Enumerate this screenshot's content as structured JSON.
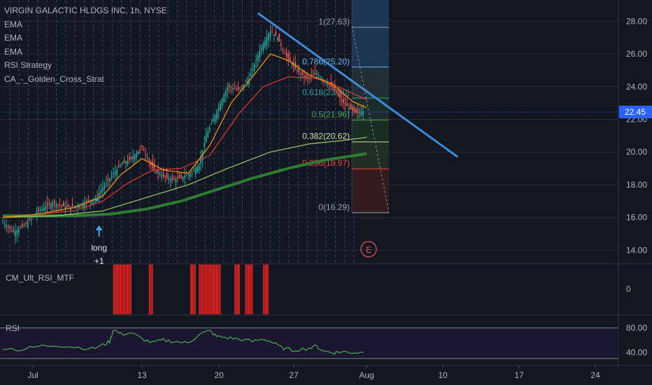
{
  "chart_data": {
    "type": "candlestick",
    "title": "VIRGIN GALACTIC HLDGS INC, 1h, NYSE",
    "overlays": [
      "EMA",
      "EMA",
      "EMA",
      "RSI Strategy",
      "CA_-_Golden_Cross_Strat"
    ],
    "price_axis": {
      "ticks": [
        14,
        16,
        18,
        20,
        22,
        24,
        26,
        28
      ],
      "labels": [
        "14.00",
        "16.00",
        "18.00",
        "20.00",
        "22.00",
        "24.00",
        "26.00",
        "28.00"
      ],
      "range": [
        13.2,
        29.3
      ]
    },
    "last_price": "22.45",
    "time_axis": {
      "labels": [
        "Jul",
        "13",
        "20",
        "27",
        "Aug",
        "10",
        "17",
        "24"
      ]
    },
    "price_path": [
      [
        0,
        15.7
      ],
      [
        6,
        15.1
      ],
      [
        12,
        15.5
      ],
      [
        20,
        16.4
      ],
      [
        28,
        16.9
      ],
      [
        36,
        16.6
      ],
      [
        44,
        16.8
      ],
      [
        52,
        17.2
      ],
      [
        60,
        18.4
      ],
      [
        66,
        19.2
      ],
      [
        72,
        19.6
      ],
      [
        78,
        20.3
      ],
      [
        84,
        19.0
      ],
      [
        90,
        18.5
      ],
      [
        96,
        18.3
      ],
      [
        104,
        18.6
      ],
      [
        110,
        19.2
      ],
      [
        114,
        21.0
      ],
      [
        120,
        22.5
      ],
      [
        126,
        24.0
      ],
      [
        132,
        23.8
      ],
      [
        138,
        24.5
      ],
      [
        144,
        26.2
      ],
      [
        150,
        27.4
      ],
      [
        154,
        27.0
      ],
      [
        158,
        26.0
      ],
      [
        164,
        25.1
      ],
      [
        170,
        24.5
      ],
      [
        176,
        24.8
      ],
      [
        182,
        24.2
      ],
      [
        186,
        23.8
      ],
      [
        190,
        23.1
      ],
      [
        194,
        22.7
      ],
      [
        198,
        22.4
      ],
      [
        202,
        22.5
      ]
    ],
    "ema_fast": [
      [
        0,
        16.0
      ],
      [
        20,
        16.2
      ],
      [
        40,
        16.6
      ],
      [
        56,
        17.3
      ],
      [
        66,
        18.6
      ],
      [
        78,
        19.6
      ],
      [
        90,
        18.9
      ],
      [
        104,
        18.7
      ],
      [
        116,
        20.4
      ],
      [
        128,
        23.0
      ],
      [
        140,
        24.6
      ],
      [
        150,
        26.0
      ],
      [
        160,
        25.6
      ],
      [
        172,
        24.7
      ],
      [
        184,
        24.2
      ],
      [
        196,
        23.1
      ],
      [
        204,
        22.7
      ]
    ],
    "ema_mid": [
      [
        0,
        16.0
      ],
      [
        20,
        16.2
      ],
      [
        40,
        16.4
      ],
      [
        56,
        17.0
      ],
      [
        70,
        18.1
      ],
      [
        84,
        18.9
      ],
      [
        100,
        19.0
      ],
      [
        116,
        19.8
      ],
      [
        132,
        22.3
      ],
      [
        146,
        24.0
      ],
      [
        160,
        24.6
      ],
      [
        176,
        24.5
      ],
      [
        190,
        23.9
      ],
      [
        204,
        23.2
      ]
    ],
    "ema_slow": [
      [
        0,
        16.0
      ],
      [
        30,
        16.1
      ],
      [
        56,
        16.4
      ],
      [
        80,
        17.2
      ],
      [
        104,
        18.0
      ],
      [
        126,
        19.0
      ],
      [
        150,
        20.0
      ],
      [
        172,
        20.5
      ],
      [
        190,
        20.7
      ],
      [
        204,
        20.9
      ]
    ],
    "golden_cross": [
      [
        0,
        16.1
      ],
      [
        40,
        16.1
      ],
      [
        60,
        16.2
      ],
      [
        80,
        16.5
      ],
      [
        100,
        17.0
      ],
      [
        120,
        17.7
      ],
      [
        140,
        18.4
      ],
      [
        160,
        19.0
      ],
      [
        180,
        19.5
      ],
      [
        204,
        19.9
      ]
    ],
    "signal": {
      "label": "long",
      "sub": "+1",
      "x": 54
    },
    "trendline": [
      [
        143,
        28.5
      ],
      [
        255,
        19.7
      ]
    ],
    "fib_levels": [
      {
        "ratio": "1",
        "price": 27.63,
        "label": "1(27.63)",
        "color": "#9aa0ab"
      },
      {
        "ratio": "0.786",
        "price": 25.2,
        "label": "0.786(25.20)",
        "color": "#64b5f6"
      },
      {
        "ratio": "0.618",
        "price": 23.3,
        "label": "0.618(23.30)",
        "color": "#26a69a"
      },
      {
        "ratio": "0.5",
        "price": 21.96,
        "label": "0.5(21.96)",
        "color": "#4caf50"
      },
      {
        "ratio": "0.382",
        "price": 20.62,
        "label": "0.382(20.62)",
        "color": "#c5e1a5"
      },
      {
        "ratio": "0.236",
        "price": 18.97,
        "label": "0.236(18.97)",
        "color": "#f44336"
      },
      {
        "ratio": "0",
        "price": 16.29,
        "label": "0(16.29)",
        "color": "#9aa0ab"
      }
    ],
    "earnings_marker": "E",
    "rsi_mtf": {
      "label": "CM_Ult_RSI_MTF",
      "ticks": [
        "0"
      ],
      "bars": [
        [
          62,
          64
        ],
        [
          64,
          72
        ],
        [
          82,
          84
        ],
        [
          105,
          108
        ],
        [
          110,
          114
        ],
        [
          114,
          122
        ],
        [
          130,
          133
        ],
        [
          136,
          140
        ],
        [
          146,
          149
        ]
      ]
    },
    "rsi": {
      "label": "RSI",
      "ticks": [
        "80.00",
        "40.00"
      ],
      "range": [
        20,
        100
      ],
      "values": [
        [
          0,
          48
        ],
        [
          10,
          44
        ],
        [
          20,
          50
        ],
        [
          30,
          52
        ],
        [
          40,
          49
        ],
        [
          50,
          46
        ],
        [
          56,
          52
        ],
        [
          60,
          58
        ],
        [
          62,
          78
        ],
        [
          66,
          70
        ],
        [
          72,
          72
        ],
        [
          78,
          62
        ],
        [
          84,
          56
        ],
        [
          90,
          60
        ],
        [
          96,
          58
        ],
        [
          104,
          55
        ],
        [
          110,
          70
        ],
        [
          116,
          75
        ],
        [
          120,
          66
        ],
        [
          126,
          64
        ],
        [
          132,
          62
        ],
        [
          140,
          58
        ],
        [
          146,
          62
        ],
        [
          150,
          58
        ],
        [
          156,
          48
        ],
        [
          162,
          44
        ],
        [
          170,
          46
        ],
        [
          176,
          50
        ],
        [
          180,
          42
        ],
        [
          186,
          40
        ],
        [
          190,
          41
        ],
        [
          196,
          40
        ],
        [
          202,
          40
        ]
      ]
    }
  }
}
